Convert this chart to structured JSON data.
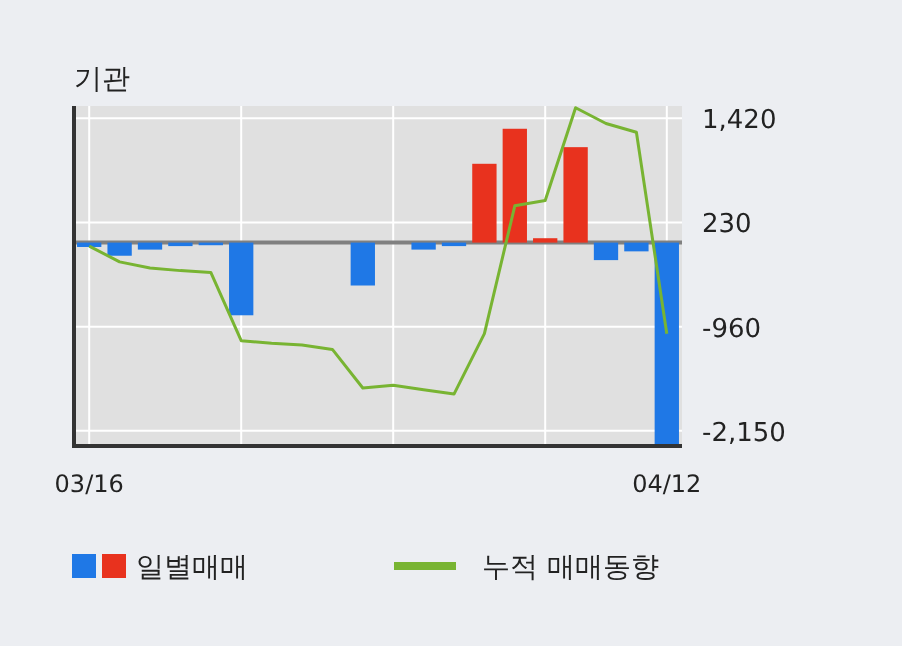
{
  "chart_data": {
    "type": "bar",
    "title": "기관",
    "categories": [
      "03/16",
      null,
      null,
      null,
      null,
      null,
      null,
      null,
      null,
      null,
      null,
      null,
      null,
      null,
      null,
      null,
      null,
      null,
      null,
      "04/12"
    ],
    "series": [
      {
        "name": "일별매매",
        "colors": [
          "#1f78e6",
          "#1f78e6",
          "#1f78e6",
          "#1f78e6",
          "#1f78e6",
          "#1f78e6",
          "#1f78e6",
          "#1f78e6",
          "#1f78e6",
          "#1f78e6",
          "#1f78e6",
          "#1f78e6",
          "#1f78e6",
          "#e8321e",
          "#e8321e",
          "#e8321e",
          "#e8321e",
          "#1f78e6",
          "#1f78e6",
          "#1f78e6"
        ],
        "values": [
          -50,
          -150,
          -80,
          -40,
          -30,
          -830,
          0,
          0,
          0,
          -490,
          0,
          -80,
          -40,
          900,
          1300,
          50,
          1090,
          -200,
          -100,
          -2300
        ]
      },
      {
        "name": "누적 매매동향",
        "type": "line",
        "color": "#78b432",
        "values": [
          -40,
          -220,
          -290,
          -320,
          -340,
          -1120,
          -1150,
          -1170,
          -1220,
          -1660,
          -1630,
          -1680,
          -1730,
          -1040,
          420,
          480,
          1540,
          1360,
          1260,
          -1040
        ]
      }
    ],
    "ylim": [
      -2300,
      1560
    ],
    "yticks": [
      {
        "value": 1420,
        "label": "1,420"
      },
      {
        "value": 230,
        "label": "230"
      },
      {
        "value": -960,
        "label": "-960"
      },
      {
        "value": -2150,
        "label": "-2,150"
      }
    ],
    "ref_lines": [
      {
        "axis": "y",
        "value": 0,
        "color": "#808080"
      }
    ],
    "grid": true,
    "legend": "bottom"
  }
}
